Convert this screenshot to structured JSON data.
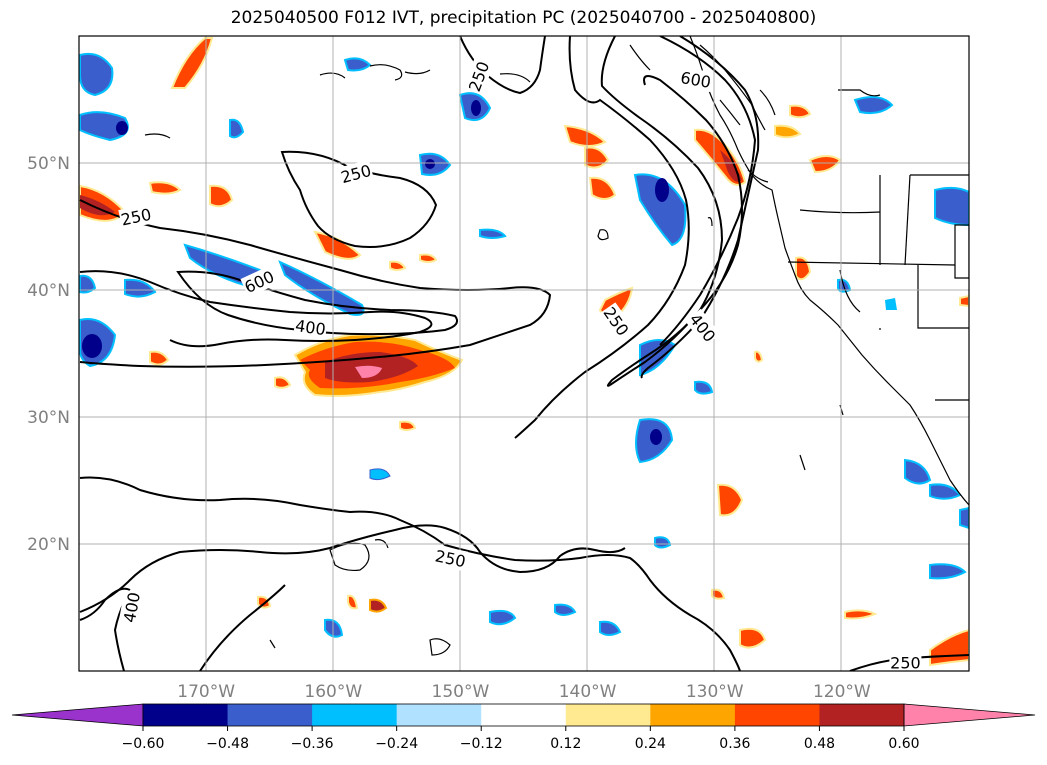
{
  "title": "2025040500 F012 IVT, precipitation PC (2025040700 - 2025040800)",
  "map": {
    "lon_range": [
      -180,
      -110
    ],
    "lat_range": [
      10,
      60
    ],
    "lon_labels": [
      {
        "lon": -170,
        "text": "170°W"
      },
      {
        "lon": -160,
        "text": "160°W"
      },
      {
        "lon": -150,
        "text": "150°W"
      },
      {
        "lon": -140,
        "text": "140°W"
      },
      {
        "lon": -130,
        "text": "130°W"
      },
      {
        "lon": -120,
        "text": "120°W"
      }
    ],
    "lat_labels": [
      {
        "lat": 50,
        "text": "50°N"
      },
      {
        "lat": 40,
        "text": "40°N"
      },
      {
        "lat": 30,
        "text": "30°N"
      },
      {
        "lat": 20,
        "text": "20°N"
      }
    ],
    "contour_labels": [
      {
        "text": "250",
        "lon": -148.5,
        "lat": 56.8,
        "rot": 70
      },
      {
        "text": "600",
        "lon": -131.5,
        "lat": 56.5,
        "rot": -10
      },
      {
        "text": "250",
        "lon": -158.2,
        "lat": 49.1,
        "rot": 15
      },
      {
        "text": "250",
        "lon": -175.5,
        "lat": 45.7,
        "rot": 12
      },
      {
        "text": "600",
        "lon": -165.8,
        "lat": 40.6,
        "rot": 25
      },
      {
        "text": "400",
        "lon": -161.8,
        "lat": 37.0,
        "rot": -8
      },
      {
        "text": "250",
        "lon": -137.8,
        "lat": 37.5,
        "rot": -55
      },
      {
        "text": "400",
        "lon": -131.0,
        "lat": 37.0,
        "rot": -52
      },
      {
        "text": "250",
        "lon": -150.8,
        "lat": 18.8,
        "rot": -12
      },
      {
        "text": "400",
        "lon": -175.8,
        "lat": 15.0,
        "rot": 80
      },
      {
        "text": "250",
        "lon": -115.0,
        "lat": 10.6,
        "rot": 0
      }
    ],
    "contour_levels": [
      250,
      400,
      600
    ]
  },
  "colorbar": {
    "colors": [
      "#9933cc",
      "#00008b",
      "#3a5fcd",
      "#00bfff",
      "#b0e2ff",
      "#ffffff",
      "#ffe991",
      "#ffa500",
      "#ff4500",
      "#b22222",
      "#ff82ab"
    ],
    "tick_labels": [
      "−0.60",
      "−0.48",
      "−0.36",
      "−0.24",
      "−0.12",
      "0.12",
      "0.24",
      "0.36",
      "0.48",
      "0.60"
    ],
    "bounds": [
      -0.6,
      -0.48,
      -0.36,
      -0.24,
      -0.12,
      0.12,
      0.24,
      0.36,
      0.48,
      0.6
    ]
  }
}
